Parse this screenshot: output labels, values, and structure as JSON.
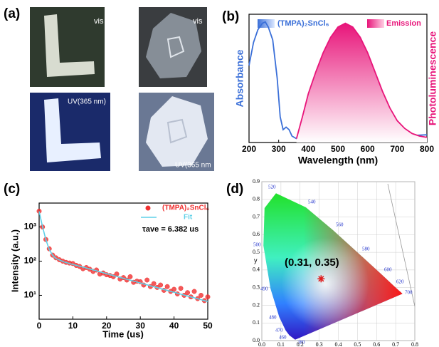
{
  "panel_labels": [
    "(a)",
    "(b)",
    "(c)",
    "(d)"
  ],
  "photos": {
    "labels": [
      "vis",
      "vis",
      "UV(365 nm)",
      "UV(365 nm"
    ]
  },
  "chart_data": [
    {
      "type": "line",
      "x_label": "Wavelength (nm)",
      "y_label": "Absorbance",
      "y2_label": "Photoluminescence",
      "xlim": [
        200,
        800
      ],
      "xticks": [
        200,
        300,
        400,
        500,
        600,
        700,
        800
      ],
      "ylim": [
        0,
        1
      ],
      "y2lim": [
        0,
        1
      ],
      "series": [
        {
          "name": "(TMPA)₂SnCl₆",
          "color": "#3a6fd8",
          "x": [
            200,
            215,
            230,
            245,
            255,
            265,
            280,
            295,
            305,
            315,
            325,
            335,
            345,
            360,
            400,
            450,
            500,
            550,
            600,
            650,
            700,
            750,
            800
          ],
          "values": [
            0.6,
            0.78,
            0.88,
            0.93,
            0.94,
            0.9,
            0.8,
            0.5,
            0.2,
            0.1,
            0.12,
            0.1,
            0.05,
            0.03,
            0.03,
            0.035,
            0.04,
            0.04,
            0.045,
            0.05,
            0.05,
            0.055,
            0.06
          ]
        },
        {
          "name": "Emission",
          "color": "#e8157a",
          "axis": "y2",
          "fill": true,
          "x": [
            360,
            380,
            400,
            425,
            450,
            475,
            500,
            525,
            550,
            575,
            600,
            625,
            650,
            675,
            700,
            725,
            750,
            775,
            800
          ],
          "values": [
            0.03,
            0.2,
            0.38,
            0.55,
            0.7,
            0.82,
            0.9,
            0.93,
            0.9,
            0.82,
            0.7,
            0.55,
            0.4,
            0.27,
            0.17,
            0.11,
            0.07,
            0.05,
            0.04
          ]
        }
      ]
    },
    {
      "type": "scatter",
      "x_label": "Time (us)",
      "y_label": "Intensity (a.u.)",
      "annotation": "τave = 6.382 us",
      "log_y": true,
      "xlim": [
        0,
        50
      ],
      "xticks": [
        0,
        10,
        20,
        30,
        40,
        50
      ],
      "ylim": [
        2,
        5000
      ],
      "yticks": [
        {
          "value": 10,
          "label": "10¹"
        },
        {
          "value": 100,
          "label": "10²"
        },
        {
          "value": 1000,
          "label": "10³"
        }
      ],
      "series": [
        {
          "name": "(TMPA)₂SnCl₆",
          "color": "#f03030",
          "x": [
            0,
            1,
            2,
            3,
            4,
            5,
            6,
            7,
            8,
            9,
            10,
            11,
            12,
            13,
            14,
            15,
            16,
            17,
            18,
            19,
            20,
            21,
            22,
            23,
            24,
            25,
            26,
            27,
            28,
            29,
            30,
            31,
            32,
            33,
            34,
            35,
            36,
            37,
            38,
            39,
            40,
            41,
            42,
            43,
            44,
            45,
            46,
            47,
            48,
            49,
            50
          ],
          "values": [
            2900,
            1000,
            430,
            230,
            150,
            125,
            110,
            100,
            92,
            88,
            85,
            75,
            70,
            60,
            65,
            58,
            50,
            55,
            42,
            45,
            40,
            38,
            35,
            42,
            30,
            33,
            28,
            35,
            24,
            26,
            25,
            20,
            28,
            18,
            22,
            17,
            20,
            14,
            18,
            13,
            15,
            11,
            16,
            10,
            12,
            9,
            13,
            8,
            10,
            7,
            9
          ]
        },
        {
          "name": "Fit",
          "color": "#5fd0e8",
          "line": true,
          "x": [
            0,
            1,
            2,
            3,
            4,
            5,
            7.5,
            10,
            15,
            20,
            25,
            30,
            35,
            40,
            45,
            50
          ],
          "values": [
            2850,
            1029,
            424,
            220,
            149,
            120,
            94,
            80,
            59,
            43,
            31.4,
            23,
            16.8,
            12.3,
            9,
            6.6
          ]
        }
      ]
    },
    {
      "type": "scatter",
      "y_label": "y",
      "grid": true,
      "xlim": [
        0,
        0.8
      ],
      "ylim": [
        0,
        0.9
      ],
      "xticks": [
        {
          "value": 0,
          "label": "0.0"
        },
        0.1,
        0.2,
        0.3,
        0.4,
        0.5,
        0.6,
        0.7,
        0.8
      ],
      "yticks": [
        {
          "value": 0,
          "label": "0.0"
        },
        0.1,
        0.2,
        0.3,
        0.4,
        0.5,
        0.6,
        0.7,
        0.8,
        0.9
      ],
      "wavelength_labels": [
        "380",
        "460",
        "470",
        "480",
        "490",
        "500",
        "520",
        "540",
        "560",
        "580",
        "600",
        "620",
        "700"
      ],
      "series": [
        {
          "color": "#e02020",
          "x": [
            0.31
          ],
          "values": [
            0.35
          ],
          "value_labels": [
            "(0.31, 0.35)"
          ]
        }
      ]
    }
  ]
}
